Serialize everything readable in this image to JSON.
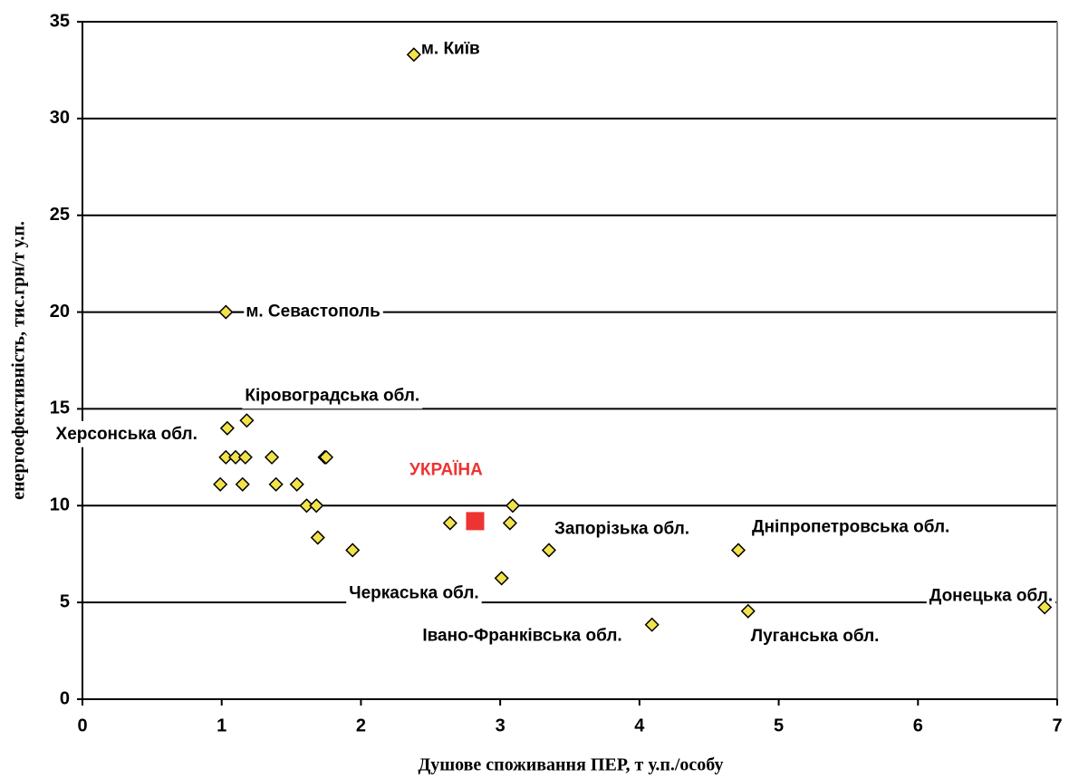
{
  "chart_data": {
    "type": "scatter",
    "xlabel": "Душове споживання ПЕР, т у.п./особу",
    "ylabel": "енергоефективність, тис.грн/т у.п.",
    "xlim": [
      0,
      7
    ],
    "xticks": [
      0,
      1,
      2,
      3,
      4,
      5,
      6,
      7
    ],
    "ylim": [
      0,
      35
    ],
    "yticks": [
      0,
      5,
      10,
      15,
      20,
      25,
      30,
      35
    ],
    "grid": true,
    "series": [
      {
        "color": "#f2e34a",
        "marker": "diamond",
        "x": [
          2.38,
          1.03,
          1.18,
          1.04,
          1.03,
          1.1,
          1.17,
          1.36,
          1.74,
          1.75,
          0.99,
          1.15,
          1.39,
          1.54,
          1.61,
          1.68,
          1.69,
          1.94,
          2.64,
          3.07,
          3.09,
          3.01,
          3.35,
          4.09,
          4.71,
          4.78,
          6.91
        ],
        "values": [
          33.3,
          20.0,
          14.4,
          14.0,
          12.5,
          12.5,
          12.5,
          12.5,
          12.5,
          12.5,
          11.1,
          11.1,
          11.1,
          11.1,
          10.0,
          10.0,
          8.35,
          7.7,
          9.1,
          9.1,
          10.0,
          6.25,
          7.7,
          3.85,
          7.7,
          4.55,
          4.75
        ],
        "labels": [
          "м.  Київ",
          "м. Севастополь",
          "Кіровоградська обл.",
          "Херсонська обл.",
          null,
          null,
          null,
          null,
          null,
          null,
          null,
          null,
          null,
          null,
          null,
          null,
          null,
          null,
          null,
          null,
          null,
          "Черкаська обл.",
          "Запорізька обл.",
          "Івано-Франківська обл.",
          "Дніпропетровська обл.",
          "Луганська обл.",
          "Донецька обл."
        ]
      },
      {
        "color": "#ee3333",
        "marker": "square",
        "x": [
          2.82
        ],
        "values": [
          9.2
        ],
        "labels": [
          "УКРАЇНА"
        ]
      }
    ]
  }
}
